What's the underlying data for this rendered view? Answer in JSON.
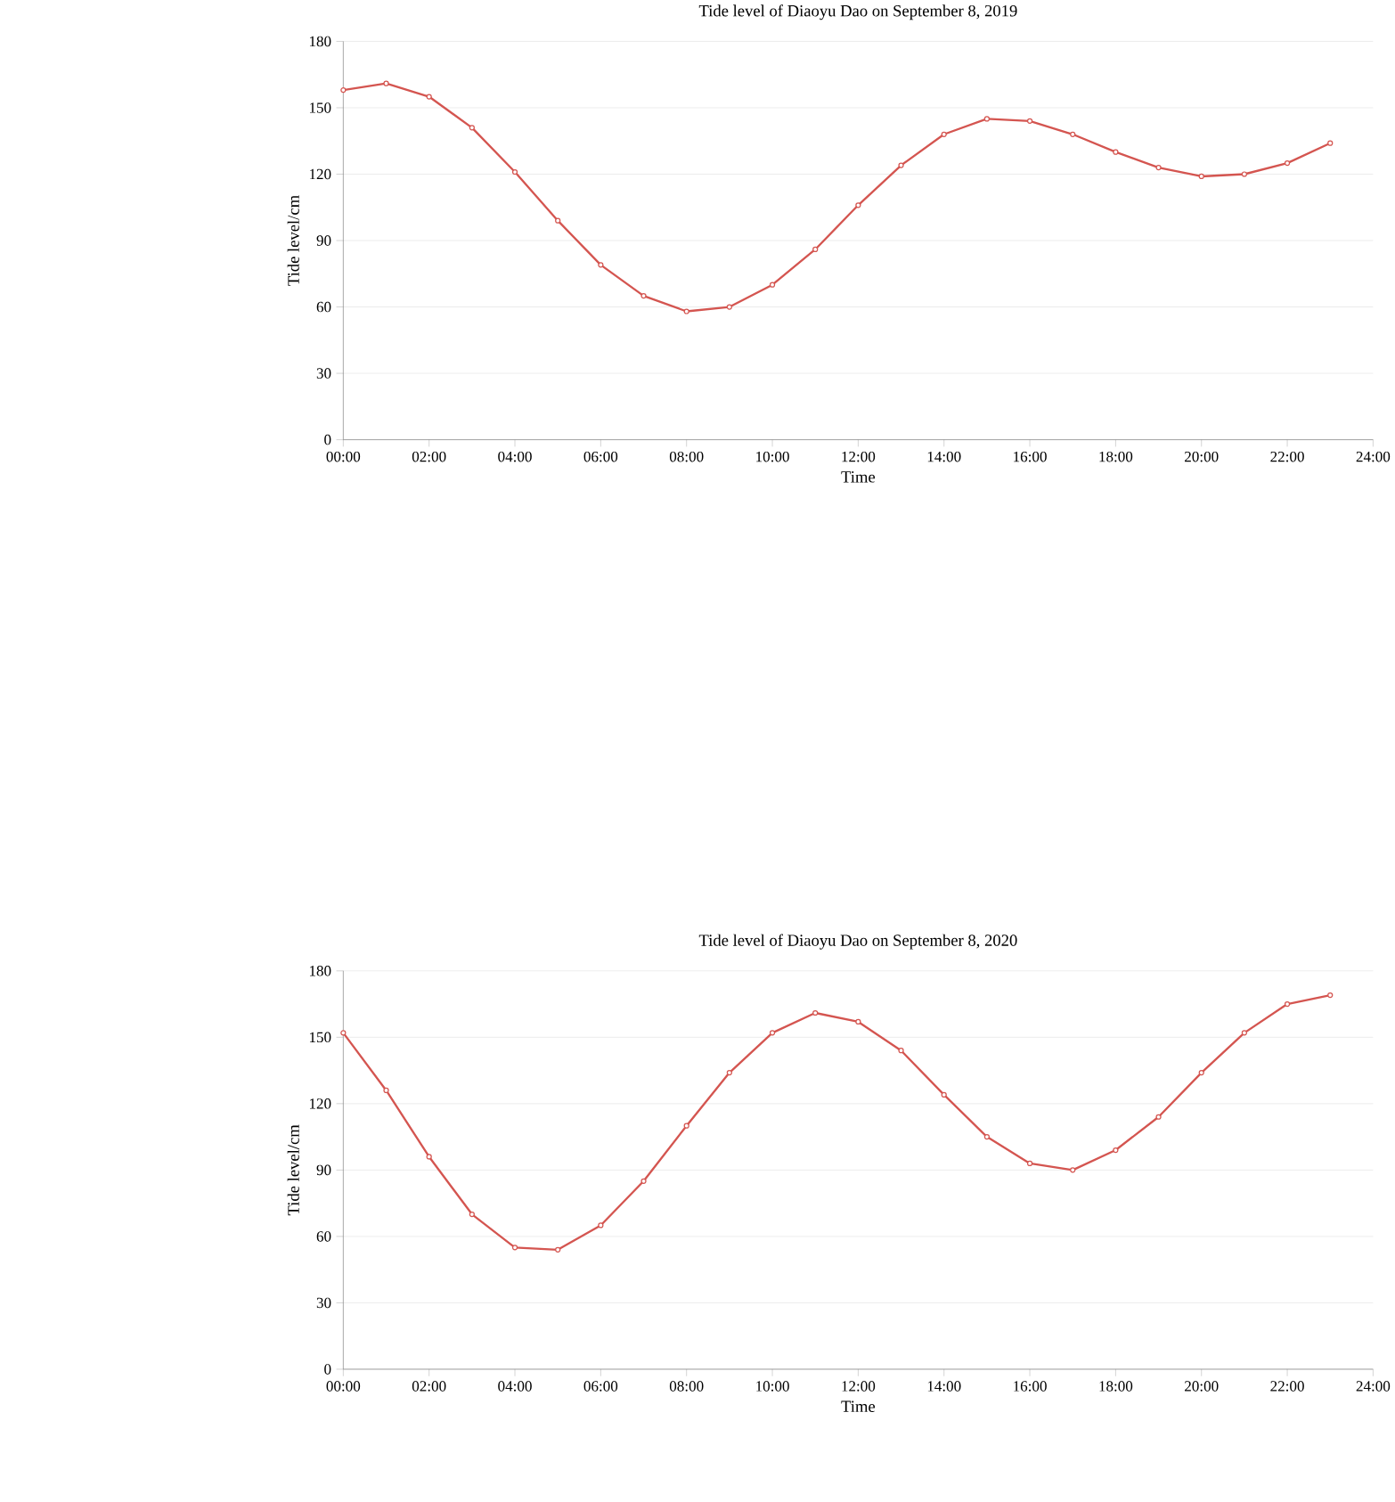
{
  "chart_data": [
    {
      "type": "line",
      "title": "Tide level of Diaoyu Dao on September 8, 2019",
      "xlabel": "Time",
      "ylabel": "Tide level/cm",
      "x": [
        0,
        1,
        2,
        3,
        4,
        5,
        6,
        7,
        8,
        9,
        10,
        11,
        12,
        13,
        14,
        15,
        16,
        17,
        18,
        19,
        20,
        21,
        22,
        23
      ],
      "series": [
        {
          "color": "#d45550",
          "values": [
            158,
            161,
            155,
            141,
            121,
            99,
            79,
            65,
            58,
            60,
            70,
            86,
            106,
            124,
            138,
            145,
            144,
            138,
            130,
            123,
            119,
            120,
            125,
            134
          ]
        }
      ],
      "xlim": [
        0,
        24
      ],
      "ylim": [
        0,
        180
      ],
      "xticks": [
        {
          "value": 0,
          "label": "00:00"
        },
        {
          "value": 2,
          "label": "02:00"
        },
        {
          "value": 4,
          "label": "04:00"
        },
        {
          "value": 6,
          "label": "06:00"
        },
        {
          "value": 8,
          "label": "08:00"
        },
        {
          "value": 10,
          "label": "10:00"
        },
        {
          "value": 12,
          "label": "12:00"
        },
        {
          "value": 14,
          "label": "14:00"
        },
        {
          "value": 16,
          "label": "16:00"
        },
        {
          "value": 18,
          "label": "18:00"
        },
        {
          "value": 20,
          "label": "20:00"
        },
        {
          "value": 22,
          "label": "22:00"
        },
        {
          "value": 24,
          "label": "24:00"
        }
      ],
      "yticks": [
        0,
        30,
        60,
        90,
        120,
        150,
        180
      ],
      "grid": "y",
      "marker": "circle",
      "line_style": "solid"
    },
    {
      "type": "line",
      "title": "Tide level of Diaoyu Dao on September 8, 2020",
      "xlabel": "Time",
      "ylabel": "Tide level/cm",
      "x": [
        0,
        1,
        2,
        3,
        4,
        5,
        6,
        7,
        8,
        9,
        10,
        11,
        12,
        13,
        14,
        15,
        16,
        17,
        18,
        19,
        20,
        21,
        22,
        23
      ],
      "series": [
        {
          "color": "#d45550",
          "values": [
            152,
            126,
            96,
            70,
            55,
            54,
            65,
            85,
            110,
            134,
            152,
            161,
            157,
            144,
            124,
            105,
            93,
            90,
            99,
            114,
            134,
            152,
            165,
            169
          ]
        }
      ],
      "xlim": [
        0,
        24
      ],
      "ylim": [
        0,
        180
      ],
      "xticks": [
        {
          "value": 0,
          "label": "00:00"
        },
        {
          "value": 2,
          "label": "02:00"
        },
        {
          "value": 4,
          "label": "04:00"
        },
        {
          "value": 6,
          "label": "06:00"
        },
        {
          "value": 8,
          "label": "08:00"
        },
        {
          "value": 10,
          "label": "10:00"
        },
        {
          "value": 12,
          "label": "12:00"
        },
        {
          "value": 14,
          "label": "14:00"
        },
        {
          "value": 16,
          "label": "16:00"
        },
        {
          "value": 18,
          "label": "18:00"
        },
        {
          "value": 20,
          "label": "20:00"
        },
        {
          "value": 22,
          "label": "22:00"
        },
        {
          "value": 24,
          "label": "24:00"
        }
      ],
      "yticks": [
        0,
        30,
        60,
        90,
        120,
        150,
        180
      ],
      "grid": "y",
      "marker": "circle",
      "line_style": "solid"
    }
  ]
}
